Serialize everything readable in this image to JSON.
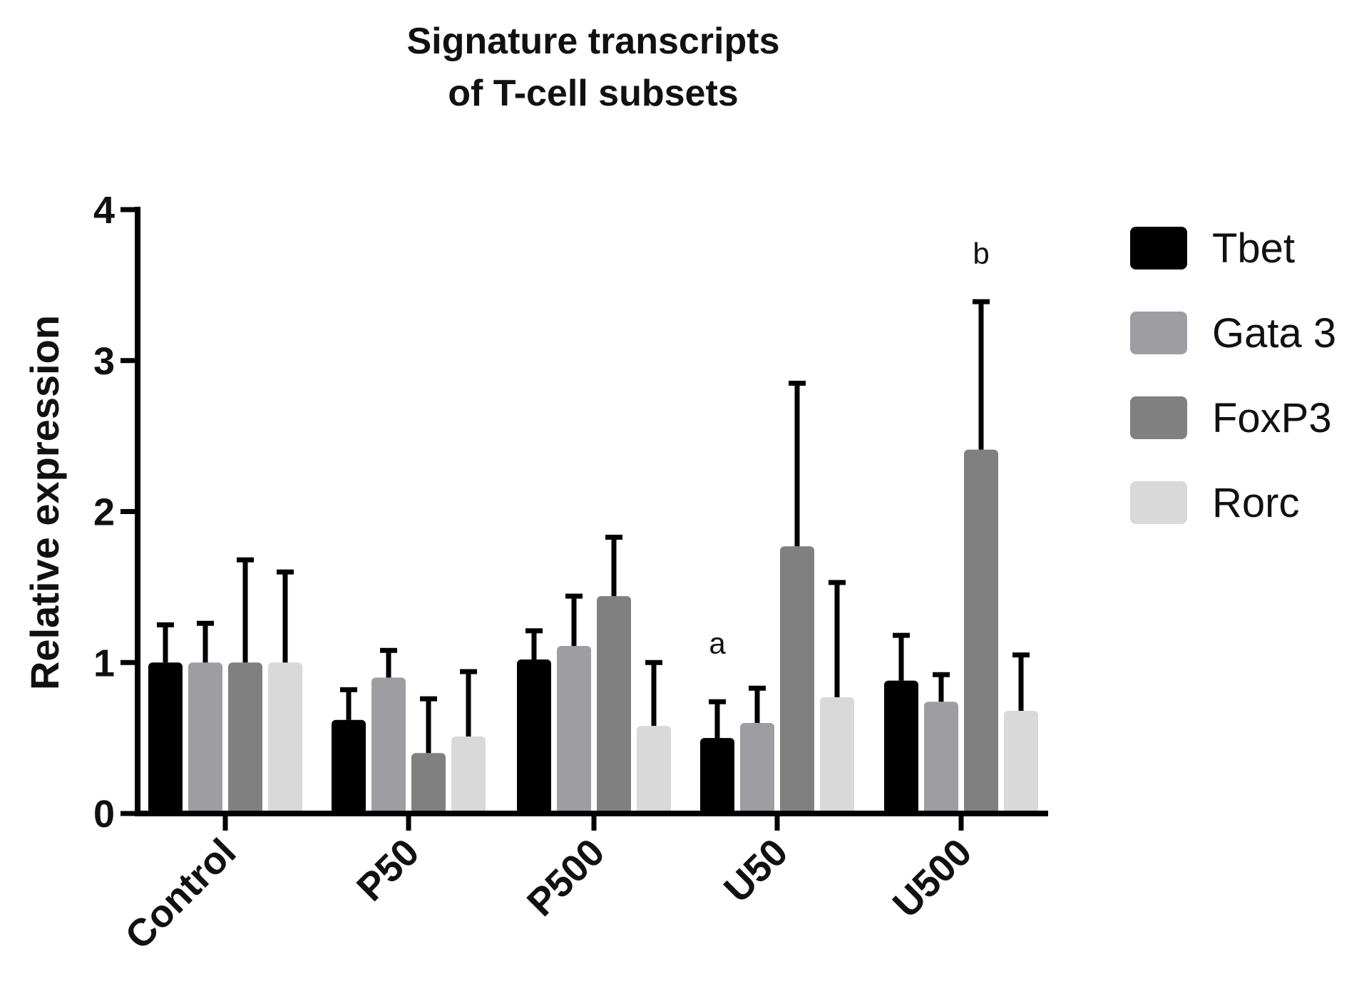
{
  "chart_data": {
    "type": "bar",
    "title_line1": "Signature transcripts",
    "title_line2": "of T-cell subsets",
    "ylabel": "Relative expression",
    "xlabel": "",
    "ylim": [
      0,
      4
    ],
    "yticks": [
      "0",
      "1",
      "2",
      "3",
      "4"
    ],
    "categories": [
      "Control",
      "P50",
      "P500",
      "U50",
      "U500"
    ],
    "series": [
      {
        "name": "Tbet",
        "color": "#000000",
        "values": [
          1.0,
          0.62,
          1.02,
          0.5,
          0.88
        ],
        "errors": [
          0.25,
          0.2,
          0.19,
          0.24,
          0.3
        ]
      },
      {
        "name": "Gata 3",
        "color": "#9e9ea2",
        "values": [
          1.0,
          0.9,
          1.11,
          0.6,
          0.74
        ],
        "errors": [
          0.26,
          0.18,
          0.33,
          0.23,
          0.18
        ]
      },
      {
        "name": "FoxP3",
        "color": "#808080",
        "values": [
          1.0,
          0.4,
          1.44,
          1.77,
          2.41
        ],
        "errors": [
          0.68,
          0.36,
          0.39,
          1.08,
          0.98
        ]
      },
      {
        "name": "Rorc",
        "color": "#d9d9d9",
        "values": [
          1.0,
          0.51,
          0.58,
          0.77,
          0.68
        ],
        "errors": [
          0.6,
          0.43,
          0.42,
          0.76,
          0.37
        ]
      }
    ],
    "annotations": [
      {
        "text": "a",
        "category": "U50",
        "value": 1.06
      },
      {
        "text": "b",
        "category": "U500",
        "value": 3.64
      }
    ],
    "legend": {
      "position": "right"
    },
    "grid": false
  }
}
